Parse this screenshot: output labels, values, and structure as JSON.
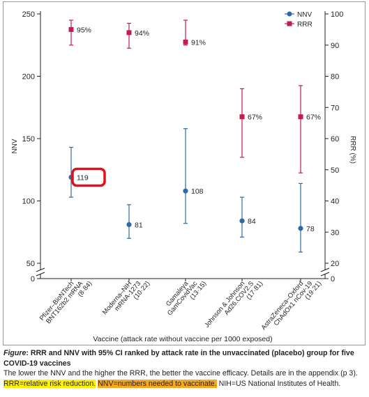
{
  "chart_data": {
    "type": "scatter",
    "categories": [
      [
        "Pfizer–BioNTech",
        "BNT162b2 mRNA",
        "(8·84)"
      ],
      [
        "Moderna–NIH",
        "mRNA-1273",
        "(10·22)"
      ],
      [
        "Gamaleya",
        "GamCovidVac",
        "(13·15)"
      ],
      [
        "Johnson & Johnson",
        "Ad26.COV2.S",
        "(17·81)"
      ],
      [
        "AstraZeneca–Oxford",
        "ChAdOx1 nCov-19",
        "(19·21)"
      ]
    ],
    "xlabel": "Vaccine (attack rate without vaccine per 1000 exposed)",
    "ylabel_left": "NNV",
    "ylabel_right": "RRR (%)",
    "ylim_left": [
      0,
      250
    ],
    "ylim_right": [
      0,
      100
    ],
    "yticks_left": [
      "0",
      "50",
      "100",
      "150",
      "200",
      "250"
    ],
    "yticks_right": [
      "0",
      "20",
      "30",
      "40",
      "50",
      "60",
      "70",
      "80",
      "90",
      "100"
    ],
    "series": [
      {
        "name": "NNV",
        "axis": "left",
        "color": "#2b6aa8",
        "marker": "circle",
        "values": [
          119,
          81,
          108,
          84,
          78
        ],
        "ci_low": [
          103,
          70,
          82,
          71,
          59
        ],
        "ci_high": [
          143,
          97,
          158,
          103,
          114
        ],
        "labels": [
          "119",
          "81",
          "108",
          "84",
          "78"
        ]
      },
      {
        "name": "RRR",
        "axis": "right",
        "color": "#c01e4e",
        "marker": "square",
        "values": [
          95,
          94,
          91,
          67,
          67
        ],
        "ci_low": [
          90,
          89,
          90,
          54,
          49
        ],
        "ci_high": [
          98,
          97,
          98,
          76,
          77
        ],
        "labels": [
          "95%",
          "94%",
          "91%",
          "67%",
          "67%"
        ]
      }
    ],
    "annotations": [
      {
        "target": "NNV 119",
        "style": "red rounded box"
      }
    ],
    "legend": "top-right",
    "grid": false
  },
  "caption": {
    "figure_label": "Figure",
    "title": ": RRR and NNV with 95% CI ranked by attack rate in the unvaccinated (placebo) group for five COVID-19 vaccines",
    "line1": "The lower the NNV and the higher the RRR, the better the vaccine efficacy. Details are in the appendix (p 3).",
    "abbrev_rrr": "RRR=relative risk reduction.",
    "abbrev_nnv": "NNV=numbers needed to vaccinate.",
    "abbrev_nih": " NIH=US National Institutes of Health."
  }
}
